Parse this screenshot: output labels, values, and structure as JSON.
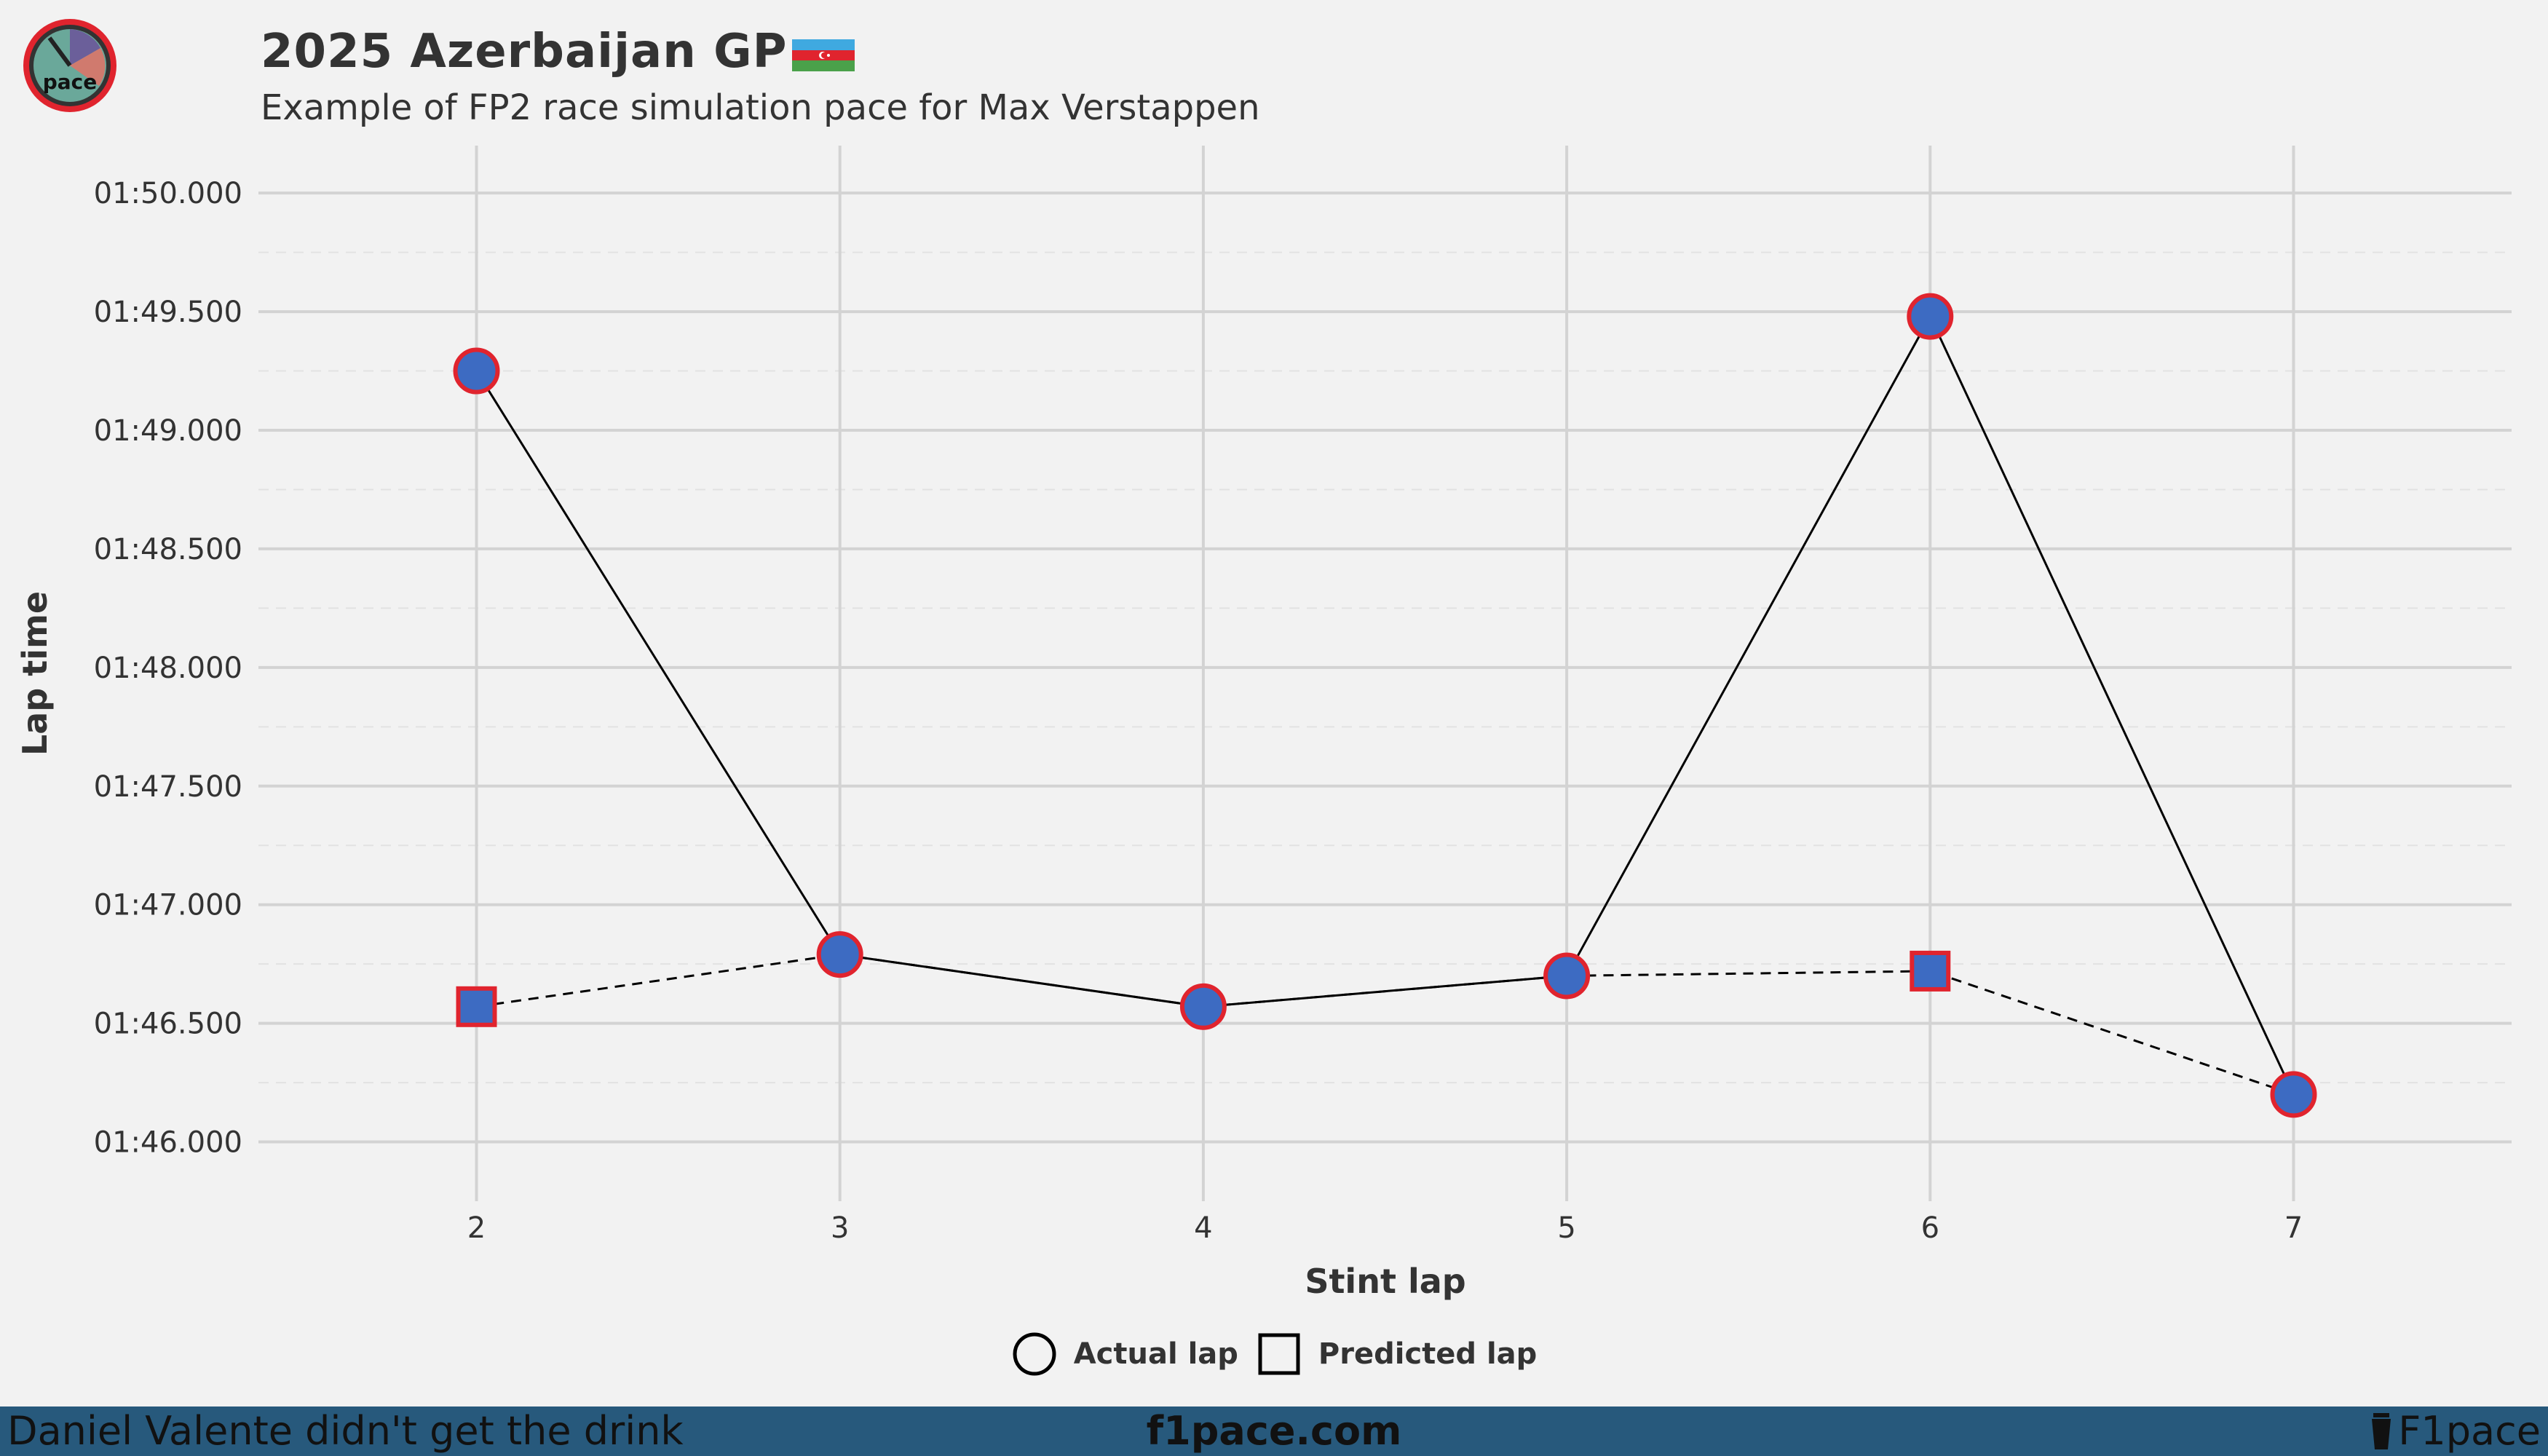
{
  "header": {
    "title": "2025 Azerbaijan GP",
    "subtitle": "Example of FP2 race simulation pace for Max Verstappen",
    "logo_text": "pace"
  },
  "footer": {
    "left": "Daniel Valente didn't get the drink",
    "center": "f1pace.com",
    "right": "F1pace",
    "background": "#27597c"
  },
  "colors": {
    "marker_fill": "#3d6bc2",
    "marker_stroke": "#e0242e",
    "line": "#000000",
    "grid": "#d3d3d3"
  },
  "chart_data": {
    "type": "line",
    "xlabel": "Stint lap",
    "ylabel": "Lap time",
    "x": [
      2,
      3,
      4,
      5,
      6,
      7
    ],
    "xlim": [
      1.4,
      7.6
    ],
    "ylim": [
      105.75,
      110.2
    ],
    "yticks": [
      106.0,
      106.5,
      107.0,
      107.5,
      108.0,
      108.5,
      109.0,
      109.5,
      110.0
    ],
    "ytick_labels": [
      "01:46.000",
      "01:46.500",
      "01:47.000",
      "01:47.500",
      "01:48.000",
      "01:48.500",
      "01:49.000",
      "01:49.500",
      "01:50.000"
    ],
    "legend_position": "bottom",
    "grid": true,
    "series": [
      {
        "name": "Actual lap",
        "marker": "circle",
        "line_style": "solid",
        "values": [
          109.25,
          106.79,
          106.57,
          106.7,
          109.48,
          106.2
        ]
      },
      {
        "name": "Predicted lap",
        "marker": "square",
        "line_style": "dashed",
        "values": [
          106.57,
          106.79,
          106.57,
          106.7,
          106.72,
          106.2
        ],
        "marker_shown": [
          true,
          false,
          false,
          false,
          true,
          false
        ]
      }
    ]
  }
}
